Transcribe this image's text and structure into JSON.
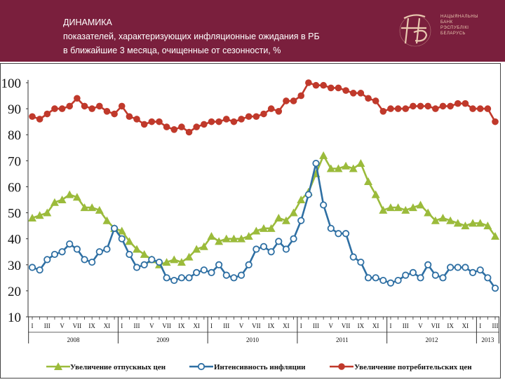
{
  "header": {
    "title_line1": "ДИНАМИКА",
    "title_line2": "показателей, характеризующих инфляционные ожидания в РБ",
    "title_line3": "в ближайшие 3 месяца, очищенные от сезонности, %",
    "logo_text": [
      "НАЦЫЯНАЛЬНЫ",
      "БАНК",
      "РЭСПУБЛІКІ",
      "БЕЛАРУСЬ"
    ]
  },
  "colors": {
    "header_bg": "#7a1f3d",
    "green": "#9bbb3b",
    "blue": "#2e6fa3",
    "red": "#c0392b"
  },
  "chart_data": {
    "type": "line",
    "title": "",
    "ylim": [
      10,
      100
    ],
    "yticks": [
      "10",
      "20",
      "30",
      "40",
      "50",
      "60",
      "70",
      "80",
      "90",
      "100"
    ],
    "month_labels": [
      "I",
      "III",
      "V",
      "VII",
      "IX",
      "XI",
      "I",
      "III",
      "V",
      "VII",
      "IX",
      "XI",
      "I",
      "III",
      "V",
      "VII",
      "IX",
      "XI",
      "I",
      "III",
      "V",
      "VII",
      "IX",
      "XI",
      "I",
      "III",
      "V",
      "VII",
      "IX",
      "XI",
      "I",
      "III"
    ],
    "years": [
      {
        "label": "2008",
        "start": 1,
        "end": 12
      },
      {
        "label": "2009",
        "start": 13,
        "end": 24
      },
      {
        "label": "2010",
        "start": 25,
        "end": 36
      },
      {
        "label": "2011",
        "start": 37,
        "end": 48
      },
      {
        "label": "2012",
        "start": 49,
        "end": 60
      },
      {
        "label": "2013",
        "start": 61,
        "end": 63
      }
    ],
    "series": [
      {
        "name": "Увеличение отпускных цен",
        "marker": "triangle",
        "values": [
          48,
          49,
          50,
          54,
          55,
          57,
          56,
          52,
          52,
          51,
          47,
          44,
          43,
          39,
          36,
          34,
          32,
          30,
          31,
          32,
          31,
          33,
          36,
          37,
          41,
          39,
          40,
          40,
          40,
          41,
          43,
          44,
          44,
          48,
          47,
          50,
          55,
          58,
          65,
          72,
          67,
          67,
          68,
          67,
          69,
          62,
          57,
          51,
          52,
          52,
          51,
          52,
          53,
          50,
          47,
          48,
          47,
          46,
          45,
          46,
          46,
          45,
          41
        ]
      },
      {
        "name": "Интенсивность инфляции",
        "marker": "circle",
        "values": [
          29,
          28,
          32,
          34,
          35,
          38,
          36,
          32,
          31,
          35,
          36,
          44,
          40,
          34,
          29,
          30,
          32,
          31,
          25,
          24,
          25,
          25,
          27,
          28,
          27,
          30,
          26,
          25,
          26,
          30,
          36,
          37,
          35,
          39,
          36,
          40,
          47,
          57,
          69,
          53,
          44,
          42,
          42,
          33,
          31,
          25,
          25,
          24,
          23,
          24,
          26,
          27,
          25,
          30,
          26,
          25,
          29,
          29,
          29,
          27,
          28,
          25,
          21
        ]
      },
      {
        "name": "Увеличение потребительских цен",
        "marker": "circle",
        "values": [
          87,
          86,
          88,
          90,
          90,
          91,
          94,
          91,
          90,
          91,
          89,
          88,
          91,
          87,
          86,
          84,
          85,
          85,
          83,
          82,
          83,
          81,
          83,
          84,
          85,
          85,
          86,
          85,
          86,
          87,
          87,
          88,
          90,
          89,
          93,
          93,
          95,
          100,
          99,
          99,
          98,
          98,
          97,
          96,
          96,
          94,
          93,
          89,
          90,
          90,
          90,
          91,
          91,
          91,
          90,
          91,
          91,
          92,
          92,
          90,
          90,
          90,
          85
        ]
      }
    ]
  }
}
